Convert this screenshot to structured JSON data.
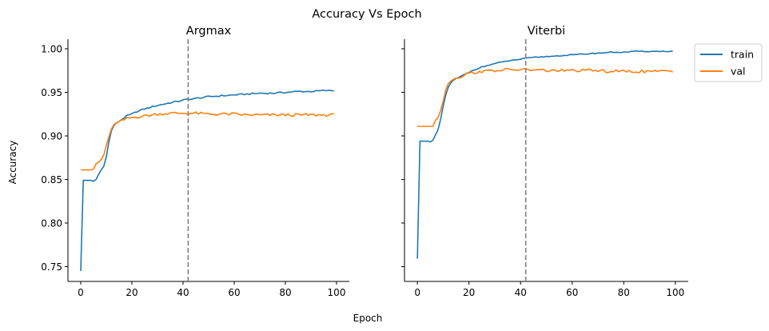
{
  "figure": {
    "suptitle": "Accuracy Vs Epoch",
    "xlabel": "Epoch",
    "ylabel": "Accuracy"
  },
  "legend": {
    "placement": "outside-top-right",
    "entries": [
      {
        "label": "train",
        "color": "#1f77b4"
      },
      {
        "label": "val",
        "color": "#ff7f0e"
      }
    ]
  },
  "chart_data": [
    {
      "type": "line",
      "title": "Argmax",
      "xlabel": "Epoch",
      "ylabel": "Accuracy",
      "xlim": [
        -5,
        105
      ],
      "ylim": [
        0.733,
        1.011
      ],
      "xticks": [
        0,
        20,
        40,
        60,
        80,
        100
      ],
      "yticks": [
        0.75,
        0.8,
        0.85,
        0.9,
        0.95,
        1.0
      ],
      "ytick_labels": [
        "0.75",
        "0.80",
        "0.85",
        "0.90",
        "0.95",
        "1.00"
      ],
      "grid": false,
      "vline": {
        "x": 42,
        "style": "dashed",
        "color": "#808080"
      },
      "keypoints": {
        "train": [
          [
            0,
            0.745
          ],
          [
            1,
            0.849
          ],
          [
            2,
            0.849
          ],
          [
            4,
            0.849
          ],
          [
            5,
            0.848
          ],
          [
            6,
            0.85
          ],
          [
            7,
            0.856
          ],
          [
            8,
            0.861
          ],
          [
            9,
            0.865
          ],
          [
            10,
            0.876
          ],
          [
            11,
            0.893
          ],
          [
            12,
            0.906
          ],
          [
            13,
            0.912
          ],
          [
            14,
            0.915
          ],
          [
            16,
            0.919
          ],
          [
            18,
            0.923
          ],
          [
            20,
            0.925
          ],
          [
            22,
            0.928
          ],
          [
            25,
            0.931
          ],
          [
            30,
            0.935
          ],
          [
            35,
            0.938
          ],
          [
            40,
            0.941
          ],
          [
            42,
            0.942
          ],
          [
            45,
            0.943
          ],
          [
            50,
            0.945
          ],
          [
            55,
            0.946
          ],
          [
            60,
            0.947
          ],
          [
            65,
            0.948
          ],
          [
            70,
            0.949
          ],
          [
            75,
            0.949
          ],
          [
            80,
            0.95
          ],
          [
            85,
            0.951
          ],
          [
            90,
            0.951
          ],
          [
            95,
            0.952
          ],
          [
            100,
            0.952
          ]
        ],
        "val": [
          [
            0,
            0.861
          ],
          [
            4,
            0.861
          ],
          [
            5,
            0.862
          ],
          [
            6,
            0.868
          ],
          [
            7,
            0.87
          ],
          [
            8,
            0.873
          ],
          [
            9,
            0.878
          ],
          [
            10,
            0.889
          ],
          [
            11,
            0.899
          ],
          [
            12,
            0.908
          ],
          [
            13,
            0.913
          ],
          [
            14,
            0.915
          ],
          [
            16,
            0.917
          ],
          [
            18,
            0.92
          ],
          [
            20,
            0.921
          ],
          [
            22,
            0.922
          ],
          [
            25,
            0.923
          ],
          [
            30,
            0.925
          ],
          [
            35,
            0.926
          ],
          [
            40,
            0.926
          ],
          [
            42,
            0.926
          ],
          [
            45,
            0.926
          ],
          [
            50,
            0.925
          ],
          [
            55,
            0.925
          ],
          [
            60,
            0.925
          ],
          [
            65,
            0.924
          ],
          [
            70,
            0.924
          ],
          [
            75,
            0.924
          ],
          [
            80,
            0.924
          ],
          [
            85,
            0.924
          ],
          [
            90,
            0.924
          ],
          [
            95,
            0.924
          ],
          [
            100,
            0.924
          ]
        ]
      },
      "noise": {
        "train": 0.0008,
        "val": 0.0016
      },
      "series": [
        {
          "name": "train",
          "color": "#1f77b4",
          "x": [],
          "values": []
        },
        {
          "name": "val",
          "color": "#ff7f0e",
          "x": [],
          "values": []
        }
      ]
    },
    {
      "type": "line",
      "title": "Viterbi",
      "xlabel": "Epoch",
      "ylabel": "Accuracy",
      "xlim": [
        -5,
        105
      ],
      "ylim": [
        0.733,
        1.011
      ],
      "xticks": [
        0,
        20,
        40,
        60,
        80,
        100
      ],
      "yticks": [
        0.75,
        0.8,
        0.85,
        0.9,
        0.95,
        1.0
      ],
      "ytick_labels": [
        "",
        "",
        "",
        "",
        "",
        ""
      ],
      "grid": false,
      "vline": {
        "x": 42,
        "style": "dashed",
        "color": "#808080"
      },
      "keypoints": {
        "train": [
          [
            0,
            0.759
          ],
          [
            1,
            0.894
          ],
          [
            2,
            0.894
          ],
          [
            4,
            0.894
          ],
          [
            5,
            0.893
          ],
          [
            6,
            0.895
          ],
          [
            7,
            0.901
          ],
          [
            8,
            0.907
          ],
          [
            9,
            0.919
          ],
          [
            10,
            0.934
          ],
          [
            11,
            0.947
          ],
          [
            12,
            0.956
          ],
          [
            13,
            0.961
          ],
          [
            14,
            0.964
          ],
          [
            16,
            0.967
          ],
          [
            18,
            0.97
          ],
          [
            20,
            0.973
          ],
          [
            22,
            0.976
          ],
          [
            25,
            0.979
          ],
          [
            30,
            0.983
          ],
          [
            35,
            0.986
          ],
          [
            40,
            0.988
          ],
          [
            42,
            0.989
          ],
          [
            45,
            0.99
          ],
          [
            50,
            0.991
          ],
          [
            55,
            0.992
          ],
          [
            60,
            0.993
          ],
          [
            65,
            0.994
          ],
          [
            70,
            0.995
          ],
          [
            75,
            0.996
          ],
          [
            80,
            0.996
          ],
          [
            85,
            0.997
          ],
          [
            90,
            0.997
          ],
          [
            95,
            0.997
          ],
          [
            100,
            0.997
          ]
        ],
        "val": [
          [
            0,
            0.911
          ],
          [
            6,
            0.911
          ],
          [
            7,
            0.918
          ],
          [
            8,
            0.921
          ],
          [
            9,
            0.929
          ],
          [
            10,
            0.94
          ],
          [
            11,
            0.953
          ],
          [
            12,
            0.96
          ],
          [
            13,
            0.963
          ],
          [
            14,
            0.965
          ],
          [
            16,
            0.967
          ],
          [
            18,
            0.97
          ],
          [
            20,
            0.972
          ],
          [
            25,
            0.974
          ],
          [
            30,
            0.975
          ],
          [
            35,
            0.976
          ],
          [
            40,
            0.976
          ],
          [
            42,
            0.976
          ],
          [
            50,
            0.975
          ],
          [
            55,
            0.975
          ],
          [
            60,
            0.975
          ],
          [
            65,
            0.975
          ],
          [
            70,
            0.975
          ],
          [
            75,
            0.974
          ],
          [
            80,
            0.974
          ],
          [
            85,
            0.974
          ],
          [
            90,
            0.974
          ],
          [
            95,
            0.974
          ],
          [
            100,
            0.974
          ]
        ]
      },
      "noise": {
        "train": 0.0005,
        "val": 0.0016
      },
      "series": [
        {
          "name": "train",
          "color": "#1f77b4",
          "x": [],
          "values": []
        },
        {
          "name": "val",
          "color": "#ff7f0e",
          "x": [],
          "values": []
        }
      ]
    }
  ]
}
